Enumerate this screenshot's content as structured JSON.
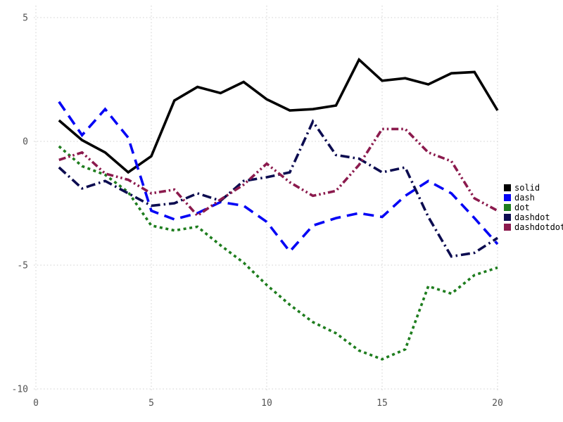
{
  "chart_data": {
    "type": "line",
    "title": "",
    "xlabel": "",
    "ylabel": "",
    "xlim": [
      0,
      20
    ],
    "ylim": [
      -10,
      5
    ],
    "xticks": [
      0,
      5,
      10,
      15,
      20
    ],
    "yticks": [
      -10,
      -5,
      0,
      5
    ],
    "grid": "dotted",
    "grid_color": "#cfcfcf",
    "tick_label_color": "#545454",
    "background_color": "#ffffff",
    "legend_position": "right-outside",
    "x": [
      1,
      2,
      3,
      4,
      5,
      6,
      7,
      8,
      9,
      10,
      11,
      12,
      13,
      14,
      15,
      16,
      17,
      18,
      19,
      20
    ],
    "series": [
      {
        "name": "solid",
        "color": "#000000",
        "dash": "solid",
        "values": [
          0.85,
          0.05,
          -0.45,
          -1.25,
          -0.6,
          1.65,
          2.2,
          1.95,
          2.4,
          1.7,
          1.25,
          1.3,
          1.45,
          3.3,
          2.45,
          2.55,
          2.3,
          2.75,
          2.8,
          1.25
        ]
      },
      {
        "name": "dash",
        "color": "#0505f5",
        "dash": "dash",
        "values": [
          1.6,
          0.25,
          1.3,
          0.15,
          -2.8,
          -3.15,
          -2.9,
          -2.45,
          -2.6,
          -3.25,
          -4.45,
          -3.4,
          -3.1,
          -2.9,
          -3.05,
          -2.2,
          -1.6,
          -2.1,
          -3.1,
          -4.15
        ]
      },
      {
        "name": "dot",
        "color": "#1e7d1e",
        "dash": "dot",
        "values": [
          -0.2,
          -1.0,
          -1.35,
          -2.05,
          -3.4,
          -3.6,
          -3.45,
          -4.2,
          -4.9,
          -5.8,
          -6.6,
          -7.3,
          -7.75,
          -8.45,
          -8.8,
          -8.4,
          -5.85,
          -6.15,
          -5.4,
          -5.1
        ]
      },
      {
        "name": "dashdot",
        "color": "#0c0c50",
        "dash": "dashdot",
        "values": [
          -1.05,
          -1.9,
          -1.6,
          -2.1,
          -2.6,
          -2.5,
          -2.1,
          -2.4,
          -1.6,
          -1.45,
          -1.25,
          0.8,
          -0.55,
          -0.7,
          -1.25,
          -1.05,
          -3.05,
          -4.65,
          -4.5,
          -3.9
        ]
      },
      {
        "name": "dashdotdot",
        "color": "#8b1a4d",
        "dash": "dashdotdot",
        "values": [
          -0.75,
          -0.45,
          -1.3,
          -1.55,
          -2.1,
          -1.95,
          -3.0,
          -2.35,
          -1.75,
          -0.9,
          -1.65,
          -2.2,
          -2.0,
          -0.95,
          0.5,
          0.5,
          -0.45,
          -0.8,
          -2.3,
          -2.8
        ]
      }
    ],
    "legend_entries": [
      "solid",
      "dash",
      "dot",
      "dashdot",
      "dashdotdot"
    ]
  }
}
